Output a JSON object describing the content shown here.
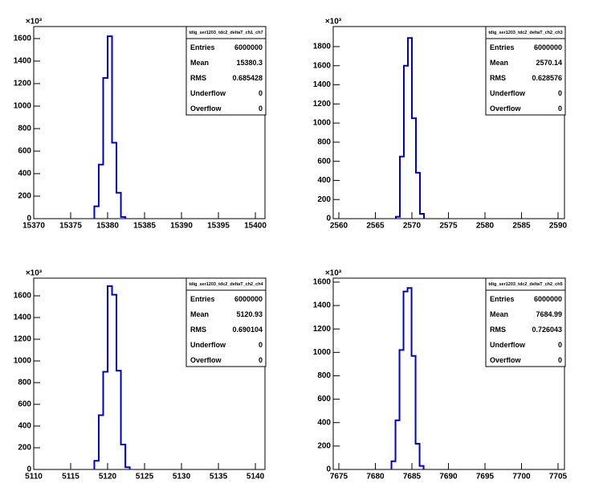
{
  "chart_data": [
    {
      "type": "histogram",
      "y_exponent": "×10³",
      "stats_title": "tdig_ser1203_tdc2_deltaT_ch1_ch7",
      "stats": [
        {
          "label": "Entries",
          "value": 6000000
        },
        {
          "label": "Mean",
          "value": 15380.3
        },
        {
          "label": "RMS",
          "value": 0.685428
        },
        {
          "label": "Underflow",
          "value": 0
        },
        {
          "label": "Overflow",
          "value": 0
        }
      ],
      "bins": [
        15378.2,
        15378.8,
        15379.4,
        15380.0,
        15380.6,
        15381.2,
        15381.8,
        15382.4
      ],
      "values": [
        110,
        480,
        1250,
        1620,
        675,
        230,
        15
      ],
      "color": "#0000cc",
      "xlim": [
        15370,
        15401.3
      ],
      "xticks": [
        15370,
        15375,
        15380,
        15385,
        15390,
        15395,
        15400
      ],
      "ylim": [
        0,
        1707
      ],
      "yticks": [
        0,
        200,
        400,
        600,
        800,
        1000,
        1200,
        1400,
        1600
      ]
    },
    {
      "type": "histogram",
      "y_exponent": "×10³",
      "stats_title": "tdig_ser1203_tdc2_deltaT_ch2_ch3",
      "stats": [
        {
          "label": "Entries",
          "value": 6000000
        },
        {
          "label": "Mean",
          "value": 2570.14
        },
        {
          "label": "RMS",
          "value": 0.628576
        },
        {
          "label": "Underflow",
          "value": 0
        },
        {
          "label": "Overflow",
          "value": 0
        }
      ],
      "bins": [
        2567.8,
        2568.35,
        2568.9,
        2569.45,
        2570.0,
        2570.55,
        2571.1,
        2571.65
      ],
      "values": [
        20,
        650,
        1600,
        1890,
        1050,
        480,
        50
      ],
      "color": "#0000cc",
      "xlim": [
        2559.23,
        2590.88
      ],
      "xticks": [
        2560,
        2565,
        2570,
        2575,
        2580,
        2585,
        2590
      ],
      "ylim": [
        0,
        2010
      ],
      "yticks": [
        0,
        200,
        400,
        600,
        800,
        1000,
        1200,
        1400,
        1600,
        1800
      ]
    },
    {
      "type": "histogram",
      "y_exponent": "×10³",
      "stats_title": "tdig_ser1203_tdc2_deltaT_ch2_ch4",
      "stats": [
        {
          "label": "Entries",
          "value": 6000000
        },
        {
          "label": "Mean",
          "value": 5120.93
        },
        {
          "label": "RMS",
          "value": 0.690104
        },
        {
          "label": "Underflow",
          "value": 0
        },
        {
          "label": "Overflow",
          "value": 0
        }
      ],
      "bins": [
        5118.2,
        5118.8,
        5119.4,
        5120.0,
        5120.6,
        5121.2,
        5121.8,
        5122.4,
        5123.0
      ],
      "values": [
        80,
        500,
        900,
        1690,
        1610,
        910,
        230,
        20
      ],
      "color": "#0000cc",
      "xlim": [
        5110,
        5141.3
      ],
      "xticks": [
        5110,
        5115,
        5120,
        5125,
        5130,
        5135,
        5140
      ],
      "ylim": [
        0,
        1763
      ],
      "yticks": [
        0,
        200,
        400,
        600,
        800,
        1000,
        1200,
        1400,
        1600
      ]
    },
    {
      "type": "histogram",
      "y_exponent": "×10³",
      "stats_title": "tdig_ser1203_tdc2_deltaT_ch2_ch5",
      "stats": [
        {
          "label": "Entries",
          "value": 6000000
        },
        {
          "label": "Mean",
          "value": 7684.99
        },
        {
          "label": "RMS",
          "value": 0.726043
        },
        {
          "label": "Underflow",
          "value": 0
        },
        {
          "label": "Overflow",
          "value": 0
        }
      ],
      "bins": [
        7682.2,
        7682.75,
        7683.3,
        7683.85,
        7684.4,
        7684.95,
        7685.5,
        7686.05,
        7686.6
      ],
      "values": [
        70,
        420,
        1020,
        1520,
        1550,
        970,
        220,
        30
      ],
      "color": "#0000cc",
      "xlim": [
        7674.23,
        7705.88
      ],
      "xticks": [
        7675,
        7680,
        7685,
        7690,
        7695,
        7700,
        7705
      ],
      "ylim": [
        0,
        1634
      ],
      "yticks": [
        0,
        200,
        400,
        600,
        800,
        1000,
        1200,
        1400,
        1600
      ]
    }
  ]
}
